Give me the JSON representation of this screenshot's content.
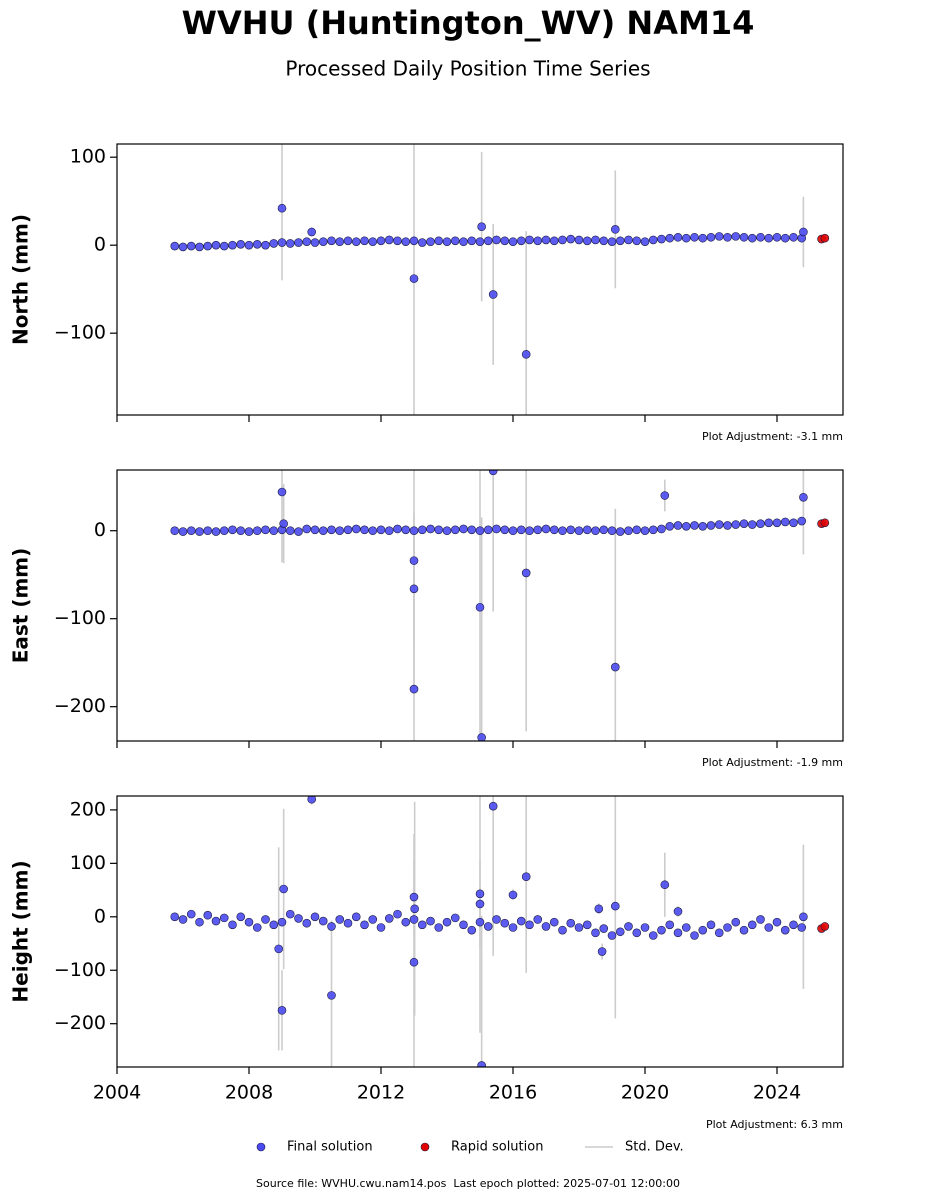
{
  "title": "WVHU (Huntington_WV) NAM14",
  "subtitle": "Processed Daily Position Time Series",
  "legend": [
    {
      "name": "Final solution"
    },
    {
      "name": "Rapid solution"
    },
    {
      "name": "Std. Dev."
    }
  ],
  "footer": "Source file: WVHU.cwu.nam14.pos  Last epoch plotted: 2025-07-01 12:00:00",
  "chart_data": [
    {
      "type": "scatter",
      "ylabel": "North (mm)",
      "annotation": "Plot Adjustment: -3.1 mm",
      "xlim": [
        2004,
        2026
      ],
      "xticks": [
        2004,
        2008,
        2012,
        2016,
        2020,
        2024
      ],
      "ylim": [
        -193,
        115
      ],
      "yticks": [
        {
          "value": -100,
          "label": "−100"
        },
        0,
        100
      ],
      "error_color": "#cccccc",
      "series": [
        {
          "color": "#4a4af0",
          "x": [
            2005.75,
            2006,
            2006.25,
            2006.5,
            2006.75,
            2007,
            2007.25,
            2007.5,
            2007.75,
            2008,
            2008.25,
            2008.5,
            2008.75,
            2009,
            2009.25,
            2009.5,
            2009.75,
            2010,
            2010.25,
            2010.5,
            2010.75,
            2011,
            2011.25,
            2011.5,
            2011.75,
            2012,
            2012.25,
            2012.5,
            2012.75,
            2013,
            2013.25,
            2013.5,
            2013.75,
            2014,
            2014.25,
            2014.5,
            2014.75,
            2015,
            2015.25,
            2015.5,
            2015.75,
            2016,
            2016.25,
            2016.5,
            2016.75,
            2017,
            2017.25,
            2017.5,
            2017.75,
            2018,
            2018.25,
            2018.5,
            2018.75,
            2019,
            2019.25,
            2019.5,
            2019.75,
            2020,
            2020.25,
            2020.5,
            2020.75,
            2021,
            2021.25,
            2021.5,
            2021.75,
            2022,
            2022.25,
            2022.5,
            2022.75,
            2023,
            2023.25,
            2023.5,
            2023.75,
            2024,
            2024.25,
            2024.5,
            2024.75
          ],
          "values": [
            -1,
            -2,
            -1,
            -2,
            -1,
            0,
            -1,
            0,
            1,
            0,
            1,
            0,
            2,
            3,
            2,
            3,
            4,
            3,
            4,
            5,
            4,
            5,
            4,
            5,
            4,
            5,
            6,
            5,
            4,
            5,
            3,
            4,
            5,
            4,
            5,
            4,
            5,
            4,
            5,
            6,
            5,
            4,
            5,
            6,
            5,
            6,
            5,
            6,
            7,
            6,
            5,
            6,
            5,
            4,
            5,
            6,
            5,
            4,
            6,
            7,
            8,
            9,
            8,
            9,
            8,
            9,
            10,
            9,
            10,
            9,
            8,
            9,
            8,
            9,
            8,
            9,
            8
          ]
        },
        {
          "color": "#4a4af0",
          "x": [
            2009,
            2009.9,
            2013,
            2015.05,
            2015.4,
            2016.4,
            2019.1,
            2024.8
          ],
          "values": [
            42,
            15,
            -38,
            21,
            -56,
            -124,
            18,
            15
          ],
          "errors": [
            82,
            5,
            155,
            85,
            80,
            140,
            67,
            40
          ]
        },
        {
          "color": "#e00000",
          "x": [
            2025.35,
            2025.45
          ],
          "values": [
            7,
            8
          ]
        }
      ]
    },
    {
      "type": "scatter",
      "ylabel": "East (mm)",
      "annotation": "Plot Adjustment: -1.9 mm",
      "xlim": [
        2004,
        2026
      ],
      "xticks": [
        2004,
        2008,
        2012,
        2016,
        2020,
        2024
      ],
      "ylim": [
        -239,
        69
      ],
      "yticks": [
        {
          "value": -200,
          "label": "−200"
        },
        {
          "value": -100,
          "label": "−100"
        },
        0
      ],
      "error_color": "#cccccc",
      "series": [
        {
          "color": "#4a4af0",
          "x": [
            2005.75,
            2006,
            2006.25,
            2006.5,
            2006.75,
            2007,
            2007.25,
            2007.5,
            2007.75,
            2008,
            2008.25,
            2008.5,
            2008.75,
            2009,
            2009.25,
            2009.5,
            2009.75,
            2010,
            2010.25,
            2010.5,
            2010.75,
            2011,
            2011.25,
            2011.5,
            2011.75,
            2012,
            2012.25,
            2012.5,
            2012.75,
            2013,
            2013.25,
            2013.5,
            2013.75,
            2014,
            2014.25,
            2014.5,
            2014.75,
            2015,
            2015.25,
            2015.5,
            2015.75,
            2016,
            2016.25,
            2016.5,
            2016.75,
            2017,
            2017.25,
            2017.5,
            2017.75,
            2018,
            2018.25,
            2018.5,
            2018.75,
            2019,
            2019.25,
            2019.5,
            2019.75,
            2020,
            2020.25,
            2020.5,
            2020.75,
            2021,
            2021.25,
            2021.5,
            2021.75,
            2022,
            2022.25,
            2022.5,
            2022.75,
            2023,
            2023.25,
            2023.5,
            2023.75,
            2024,
            2024.25,
            2024.5,
            2024.75
          ],
          "values": [
            0,
            -1,
            0,
            -1,
            0,
            -1,
            0,
            1,
            0,
            -1,
            0,
            1,
            0,
            1,
            0,
            -1,
            2,
            1,
            0,
            1,
            0,
            1,
            2,
            1,
            0,
            1,
            0,
            2,
            1,
            0,
            1,
            2,
            1,
            0,
            1,
            2,
            1,
            0,
            1,
            2,
            1,
            0,
            1,
            0,
            1,
            2,
            1,
            0,
            1,
            0,
            1,
            0,
            1,
            0,
            -1,
            0,
            1,
            0,
            1,
            2,
            5,
            6,
            5,
            6,
            5,
            6,
            7,
            6,
            7,
            8,
            7,
            8,
            9,
            9,
            10,
            9,
            11
          ]
        },
        {
          "color": "#4a4af0",
          "x": [
            2009,
            2009.05,
            2013,
            2013,
            2013,
            2015,
            2015.05,
            2015.4,
            2016.4,
            2019.1,
            2020.6,
            2024.8
          ],
          "values": [
            44,
            8,
            -34,
            -66,
            -180,
            -87,
            -235,
            68,
            -48,
            -155,
            40,
            38
          ],
          "errors": [
            80,
            45,
            150,
            60,
            200,
            160,
            250,
            160,
            180,
            180,
            18,
            65
          ]
        },
        {
          "color": "#e00000",
          "x": [
            2025.35,
            2025.45
          ],
          "values": [
            8,
            9
          ]
        }
      ]
    },
    {
      "type": "scatter",
      "ylabel": "Height (mm)",
      "annotation": "Plot Adjustment: 6.3 mm",
      "xlim": [
        2004,
        2026
      ],
      "xticks": [
        2004,
        2008,
        2012,
        2016,
        2020,
        2024
      ],
      "ylim": [
        -281,
        226
      ],
      "yticks": [
        {
          "value": -200,
          "label": "−200"
        },
        {
          "value": -100,
          "label": "−100"
        },
        0,
        100,
        200
      ],
      "error_color": "#cccccc",
      "series": [
        {
          "color": "#4a4af0",
          "x": [
            2005.75,
            2006,
            2006.25,
            2006.5,
            2006.75,
            2007,
            2007.25,
            2007.5,
            2007.75,
            2008,
            2008.25,
            2008.5,
            2008.75,
            2009,
            2009.25,
            2009.5,
            2009.75,
            2010,
            2010.25,
            2010.5,
            2010.75,
            2011,
            2011.25,
            2011.5,
            2011.75,
            2012,
            2012.25,
            2012.5,
            2012.75,
            2013,
            2013.25,
            2013.5,
            2013.75,
            2014,
            2014.25,
            2014.5,
            2014.75,
            2015,
            2015.25,
            2015.5,
            2015.75,
            2016,
            2016.25,
            2016.5,
            2016.75,
            2017,
            2017.25,
            2017.5,
            2017.75,
            2018,
            2018.25,
            2018.5,
            2018.75,
            2019,
            2019.25,
            2019.5,
            2019.75,
            2020,
            2020.25,
            2020.5,
            2020.75,
            2021,
            2021.25,
            2021.5,
            2021.75,
            2022,
            2022.25,
            2022.5,
            2022.75,
            2023,
            2023.25,
            2023.5,
            2023.75,
            2024,
            2024.25,
            2024.5,
            2024.75
          ],
          "values": [
            0,
            -5,
            5,
            -10,
            3,
            -8,
            -2,
            -15,
            0,
            -10,
            -20,
            -5,
            -15,
            -10,
            5,
            -3,
            -12,
            0,
            -8,
            -18,
            -5,
            -12,
            0,
            -15,
            -5,
            -20,
            -3,
            5,
            -10,
            -5,
            -15,
            -8,
            -20,
            -10,
            -2,
            -15,
            -25,
            -10,
            -18,
            -5,
            -12,
            -20,
            -8,
            -15,
            -5,
            -18,
            -10,
            -25,
            -12,
            -20,
            -15,
            -30,
            -22,
            -35,
            -28,
            -18,
            -30,
            -20,
            -35,
            -25,
            -15,
            -30,
            -20,
            -35,
            -25,
            -15,
            -30,
            -20,
            -10,
            -25,
            -15,
            -5,
            -20,
            -10,
            -25,
            -15,
            -20
          ]
        },
        {
          "color": "#4a4af0",
          "x": [
            2008.9,
            2009,
            2009.05,
            2009.9,
            2010.5,
            2013,
            2013,
            2013.02,
            2015,
            2015,
            2015.05,
            2015.4,
            2016,
            2016.4,
            2018.6,
            2018.7,
            2019.1,
            2020.6,
            2021,
            2024.8
          ],
          "values": [
            -60,
            -175,
            52,
            220,
            -147,
            37,
            -85,
            15,
            43,
            24,
            -278,
            207,
            41,
            75,
            15,
            -65,
            20,
            60,
            10,
            0
          ],
          "errors": [
            190,
            75,
            150,
            10,
            140,
            70,
            240,
            200,
            260,
            80,
            280,
            280,
            10,
            180,
            10,
            15,
            210,
            60,
            10,
            135
          ]
        },
        {
          "color": "#e00000",
          "x": [
            2025.35,
            2025.45
          ],
          "values": [
            -22,
            -18
          ]
        }
      ]
    }
  ]
}
